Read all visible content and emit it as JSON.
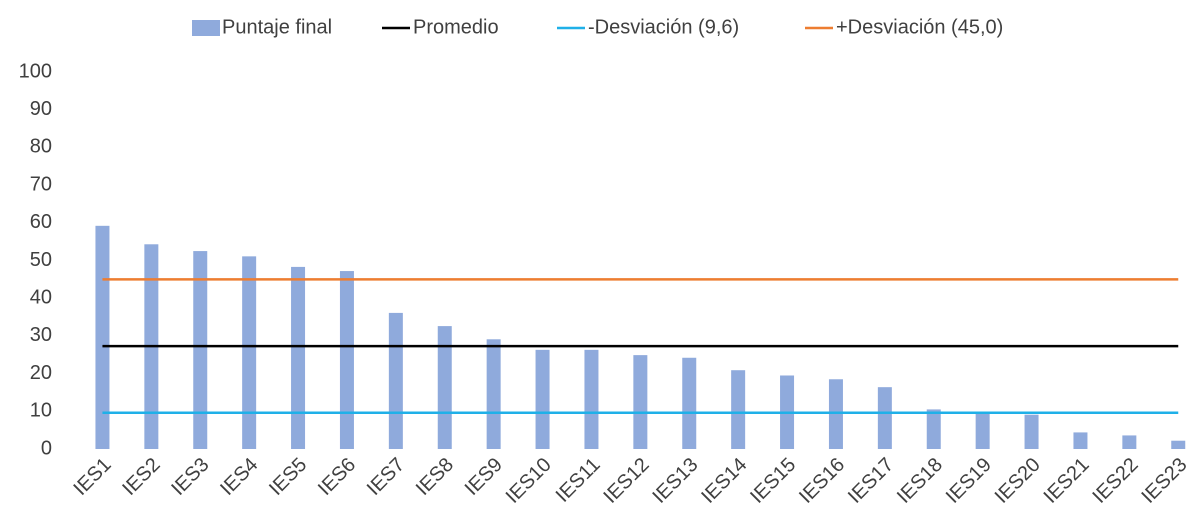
{
  "chart_data": {
    "type": "bar",
    "categories": [
      "IES1",
      "IES2",
      "IES3",
      "IES4",
      "IES5",
      "IES6",
      "IES7",
      "IES8",
      "IES9",
      "IES10",
      "IES11",
      "IES12",
      "IES13",
      "IES14",
      "IES15",
      "IES16",
      "IES17",
      "IES18",
      "IES19",
      "IES20",
      "IES21",
      "IES22",
      "IES23"
    ],
    "series": [
      {
        "name": "Puntaje final",
        "kind": "bar",
        "color": "#8faadc",
        "values": [
          59.2,
          54.3,
          52.5,
          51.1,
          48.3,
          47.2,
          36.1,
          32.6,
          29.1,
          26.3,
          26.3,
          24.9,
          24.2,
          20.9,
          19.5,
          18.5,
          16.4,
          10.5,
          9.9,
          9.1,
          4.4,
          3.6,
          2.2
        ]
      },
      {
        "name": "Promedio",
        "kind": "line",
        "color": "#000000",
        "values": [
          27.3,
          27.3,
          27.3,
          27.3,
          27.3,
          27.3,
          27.3,
          27.3,
          27.3,
          27.3,
          27.3,
          27.3,
          27.3,
          27.3,
          27.3,
          27.3,
          27.3,
          27.3,
          27.3,
          27.3,
          27.3,
          27.3,
          27.3
        ]
      },
      {
        "name": "-Desviación (9,6)",
        "kind": "line",
        "color": "#1fb0e8",
        "values": [
          9.6,
          9.6,
          9.6,
          9.6,
          9.6,
          9.6,
          9.6,
          9.6,
          9.6,
          9.6,
          9.6,
          9.6,
          9.6,
          9.6,
          9.6,
          9.6,
          9.6,
          9.6,
          9.6,
          9.6,
          9.6,
          9.6,
          9.6
        ]
      },
      {
        "name": "+Desviación (45,0)",
        "kind": "line",
        "color": "#ed7d31",
        "values": [
          45.0,
          45.0,
          45.0,
          45.0,
          45.0,
          45.0,
          45.0,
          45.0,
          45.0,
          45.0,
          45.0,
          45.0,
          45.0,
          45.0,
          45.0,
          45.0,
          45.0,
          45.0,
          45.0,
          45.0,
          45.0,
          45.0,
          45.0
        ]
      }
    ],
    "ylim": [
      0,
      100
    ],
    "yticks": [
      0,
      10,
      20,
      30,
      40,
      50,
      60,
      70,
      80,
      90,
      100
    ],
    "grid": false,
    "legend": "top"
  }
}
